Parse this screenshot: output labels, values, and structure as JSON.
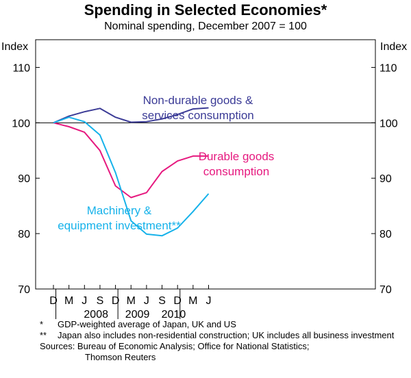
{
  "title": "Spending in Selected Economies*",
  "subtitle": "Nominal spending, December 2007 = 100",
  "chart_data": {
    "type": "line",
    "title": "Spending in Selected Economies*",
    "subtitle": "Nominal spending, December 2007 = 100",
    "ylabel_left": "Index",
    "ylabel_right": "Index",
    "ylim": [
      70,
      115
    ],
    "yticks": [
      70,
      80,
      90,
      100,
      110
    ],
    "x_tick_labels": [
      "D",
      "M",
      "J",
      "S",
      "D",
      "M",
      "J",
      "S",
      "D",
      "M",
      "J"
    ],
    "year_labels": [
      {
        "label": "2008",
        "at": 4
      },
      {
        "label": "2009",
        "at": 12
      },
      {
        "label": "2010",
        "at": 19
      }
    ],
    "x_units": "months since December 2007",
    "series": [
      {
        "name": "Non-durable goods & services consumption",
        "label_lines": [
          "Non-durable goods &",
          "services consumption"
        ],
        "color": "#3b3b96",
        "x": [
          0,
          3,
          6,
          9,
          12,
          15,
          18,
          21,
          24,
          27,
          30
        ],
        "values": [
          100.0,
          101.2,
          102.0,
          102.6,
          101.0,
          100.1,
          100.2,
          100.7,
          101.5,
          102.5,
          102.7
        ]
      },
      {
        "name": "Durable goods consumption",
        "label_lines": [
          "Durable goods",
          "consumption"
        ],
        "color": "#e6197f",
        "x": [
          0,
          3,
          6,
          9,
          12,
          15,
          18,
          21,
          24,
          27,
          30
        ],
        "values": [
          100.0,
          99.3,
          98.3,
          95.0,
          88.6,
          86.5,
          87.4,
          91.2,
          93.1,
          94.0,
          94.0
        ]
      },
      {
        "name": "Machinery & equipment investment**",
        "label_lines": [
          "Machinery &",
          "equipment investment**"
        ],
        "color": "#16b2ea",
        "x": [
          0,
          3,
          6,
          9,
          12,
          15,
          18,
          21,
          24,
          27,
          30
        ],
        "values": [
          100.0,
          101.0,
          100.2,
          97.8,
          91.0,
          82.3,
          79.9,
          79.6,
          81.0,
          84.0,
          87.2
        ]
      }
    ]
  },
  "notes": [
    {
      "mark": "*",
      "text": "GDP-weighted average of Japan, UK and US"
    },
    {
      "mark": "**",
      "text": "Japan also includes non-residential construction; UK includes all business investment"
    }
  ],
  "sources": {
    "line1": "Sources: Bureau of Economic Analysis; Office for National Statistics;",
    "line2": "Thomson Reuters"
  }
}
